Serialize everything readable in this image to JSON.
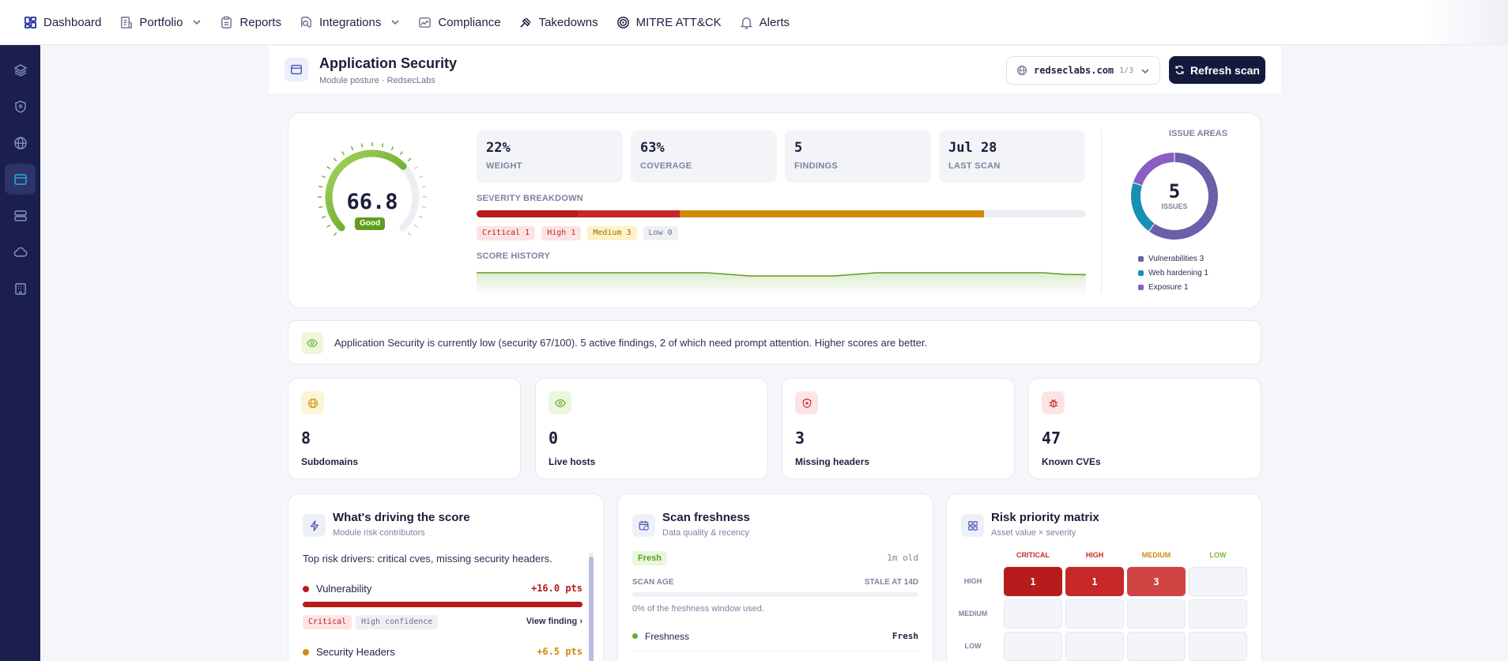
{
  "nav": {
    "items": [
      {
        "label": "Dashboard",
        "icon": "dashboard-icon",
        "dropdown": false
      },
      {
        "label": "Portfolio",
        "icon": "portfolio-icon",
        "dropdown": true
      },
      {
        "label": "Reports",
        "icon": "reports-icon",
        "dropdown": false
      },
      {
        "label": "Integrations",
        "icon": "integrations-icon",
        "dropdown": true
      },
      {
        "label": "Compliance",
        "icon": "compliance-icon",
        "dropdown": false
      },
      {
        "label": "Takedowns",
        "icon": "gavel-icon",
        "dropdown": false
      },
      {
        "label": "MITRE ATT&CK",
        "icon": "target-icon",
        "dropdown": false
      },
      {
        "label": "Alerts",
        "icon": "bell-icon",
        "dropdown": false
      }
    ]
  },
  "sidebar": {
    "items": [
      "layers-icon",
      "shield-icon",
      "globe-icon",
      "app-window-icon",
      "server-icon",
      "cloud-icon",
      "building-icon"
    ],
    "active_index": 3
  },
  "header": {
    "title": "Application Security",
    "subtitle": "Module posture · RedsecLabs",
    "domain": "redseclabs.com",
    "domain_count": "1/3",
    "refresh_label": "Refresh scan"
  },
  "score": {
    "value": "66.8",
    "fraction": 0.668,
    "badge": "Good",
    "color": "#6aab2a"
  },
  "stats": [
    {
      "value": "22%",
      "label": "Weight"
    },
    {
      "value": "63%",
      "label": "Coverage"
    },
    {
      "value": "5",
      "label": "Findings"
    },
    {
      "value": "Jul 28",
      "label": "Last scan"
    }
  ],
  "severity": {
    "label": "Severity breakdown",
    "segments": [
      {
        "name": "Critical",
        "count": 1,
        "color": "#b71c1c",
        "bg": "#fde4e4",
        "fg": "#b71c1c"
      },
      {
        "name": "High",
        "count": 1,
        "color": "#c62828",
        "bg": "#fde4e4",
        "fg": "#c62828"
      },
      {
        "name": "Medium",
        "count": 3,
        "color": "#d18b0b",
        "bg": "#fdf3c7",
        "fg": "#a56a00"
      },
      {
        "name": "Low",
        "count": 0,
        "color": "#8bc34a",
        "bg": "#eef0f4",
        "fg": "#6b7090"
      }
    ],
    "pill_text": [
      "Critical 1",
      "High 1",
      "Medium 3",
      "Low 0"
    ]
  },
  "history": {
    "label": "Score history",
    "values": [
      68,
      68,
      68,
      68,
      68,
      68,
      68,
      68,
      68,
      68,
      68,
      68,
      67,
      66,
      66,
      66,
      66,
      66,
      67,
      68,
      68,
      68,
      68,
      68,
      68,
      68,
      68,
      68,
      67,
      66.8
    ]
  },
  "issue_areas": {
    "title": "Issue areas",
    "total": "5",
    "total_label": "Issues",
    "items": [
      {
        "name": "Vulnerabilities 3",
        "value": 3,
        "color": "#6a5fa8"
      },
      {
        "name": "Web hardening 1",
        "value": 1,
        "color": "#1690b5"
      },
      {
        "name": "Exposure 1",
        "value": 1,
        "color": "#8a5ec4"
      }
    ]
  },
  "summary": {
    "text": "Application Security is currently low (security 67/100). 5 active findings, 2 of which need prompt attention. Higher scores are better."
  },
  "kpis": [
    {
      "value": "8",
      "label": "Subdomains",
      "icon": "globe-icon",
      "bg": "#fbf5d6",
      "fg": "#c79a14"
    },
    {
      "value": "0",
      "label": "Live hosts",
      "icon": "eye-icon",
      "bg": "#eaf6dd",
      "fg": "#6aab2a"
    },
    {
      "value": "3",
      "label": "Missing headers",
      "icon": "shield-x-icon",
      "bg": "#fde4e4",
      "fg": "#c62828"
    },
    {
      "value": "47",
      "label": "Known CVEs",
      "icon": "bug-icon",
      "bg": "#fde4e4",
      "fg": "#c62828"
    }
  ],
  "drivers": {
    "title": "What's driving the score",
    "subtitle": "Module risk contributors",
    "intro": "Top risk drivers: critical cves, missing security headers.",
    "items": [
      {
        "name": "Vulnerability",
        "pts": "+16.0 pts",
        "color": "#b71c1c",
        "bar": 1.0,
        "severity": "Critical",
        "confidence": "High confidence",
        "link": "View finding"
      },
      {
        "name": "Security Headers",
        "pts": "+6.5 pts",
        "color": "#d18b0b"
      }
    ]
  },
  "freshness": {
    "title": "Scan freshness",
    "subtitle": "Data quality & recency",
    "badge": "Fresh",
    "age": "1m old",
    "age_label": "Scan age",
    "stale_label": "Stale at 14d",
    "window_text": "0% of the freshness window used.",
    "window_used": 0,
    "rows": [
      {
        "label": "Freshness",
        "value": "Fresh"
      }
    ]
  },
  "matrix": {
    "title": "Risk priority matrix",
    "subtitle": "Asset value × severity",
    "cols": [
      "CRITICAL",
      "HIGH",
      "MEDIUM",
      "LOW"
    ],
    "col_colors": [
      "#c62828",
      "#c62828",
      "#d18b0b",
      "#7cb82a"
    ],
    "rows": [
      "HIGH",
      "MEDIUM",
      "LOW"
    ],
    "cells": [
      [
        "1",
        "1",
        "3",
        ""
      ],
      [
        "",
        "",
        "",
        ""
      ],
      [
        "",
        "",
        "",
        ""
      ]
    ],
    "cell_colors": [
      [
        "#b71c1c",
        "#c62828",
        "#d14444",
        ""
      ],
      [
        "",
        "",
        "",
        ""
      ],
      [
        "",
        "",
        "",
        ""
      ]
    ]
  }
}
